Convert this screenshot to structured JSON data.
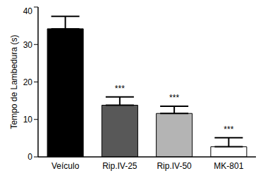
{
  "chart_data": {
    "type": "bar",
    "y_label": "Tempo de Lambedura (s)",
    "categories": [
      "Veículo",
      "Rip.IV-25",
      "Rip.IV-50",
      "MK-801"
    ],
    "values": [
      34.2,
      13.8,
      11.6,
      2.7
    ],
    "errors": [
      3.3,
      2.2,
      1.9,
      2.4
    ],
    "annotations": [
      null,
      "***",
      "***",
      "***"
    ],
    "colors": [
      "#000000",
      "#585858",
      "#b4b4b4",
      "#ffffff"
    ],
    "ylim": [
      0,
      40
    ],
    "yticks": [
      0,
      10,
      20,
      30,
      40
    ],
    "grid": false
  }
}
